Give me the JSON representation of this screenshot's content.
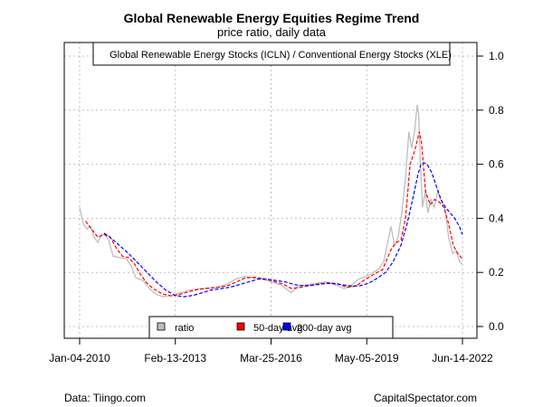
{
  "chart_data": {
    "type": "line",
    "title": "Global Renewable Energy Equities Regime Trend",
    "subtitle": "price ratio, daily data",
    "annotation": "Global Renewable Energy Stocks (ICLN) / Conventional Energy Stocks (XLE)",
    "xlabel": "",
    "ylabel": "",
    "xlim": [
      2009.55,
      2022.9
    ],
    "ylim": [
      -0.04,
      1.04
    ],
    "x_tick_values": [
      2010.01,
      2013.12,
      2016.23,
      2019.34,
      2022.45
    ],
    "x_tick_labels": [
      "Jan-04-2010",
      "Feb-13-2013",
      "Mar-25-2016",
      "May-05-2019",
      "Jun-14-2022"
    ],
    "y_ticks": [
      0.0,
      0.2,
      0.4,
      0.6,
      0.8,
      1.0
    ],
    "y_tick_labels": [
      "0.0",
      "0.2",
      "0.4",
      "0.6",
      "0.8",
      "1.0"
    ],
    "y_axis_side": "right",
    "grid": true,
    "legend": {
      "placement": "bottom-center",
      "entries": [
        {
          "label": "ratio",
          "color": "#bebebe"
        },
        {
          "label": "50-day avg",
          "color": "#ff0000"
        },
        {
          "label": "200-day avg",
          "color": "#0000ff"
        }
      ]
    },
    "series": [
      {
        "name": "ratio",
        "color": "#bebebe",
        "style": "solid",
        "x": [
          2010.01,
          2010.13,
          2010.25,
          2010.36,
          2010.48,
          2010.6,
          2010.72,
          2010.83,
          2010.95,
          2011.1,
          2011.3,
          2011.54,
          2011.7,
          2011.84,
          2012.07,
          2012.28,
          2012.48,
          2012.72,
          2013.0,
          2013.3,
          2013.6,
          2013.9,
          2014.2,
          2014.5,
          2014.77,
          2015.07,
          2015.36,
          2015.66,
          2015.95,
          2016.24,
          2016.54,
          2016.77,
          2016.89,
          2017.13,
          2017.42,
          2017.72,
          2018.0,
          2018.3,
          2018.6,
          2018.83,
          2019.07,
          2019.3,
          2019.54,
          2019.71,
          2019.89,
          2020.0,
          2020.13,
          2020.24,
          2020.36,
          2020.48,
          2020.6,
          2020.71,
          2020.8,
          2020.89,
          2020.98,
          2021.03,
          2021.09,
          2021.15,
          2021.24,
          2021.33,
          2021.42,
          2021.53,
          2021.65,
          2021.77,
          2021.89,
          2022.0,
          2022.13,
          2022.25,
          2022.36,
          2022.45
        ],
        "values": [
          0.44,
          0.38,
          0.36,
          0.37,
          0.33,
          0.31,
          0.34,
          0.34,
          0.32,
          0.26,
          0.255,
          0.25,
          0.22,
          0.18,
          0.17,
          0.14,
          0.12,
          0.11,
          0.115,
          0.125,
          0.135,
          0.14,
          0.14,
          0.145,
          0.155,
          0.175,
          0.185,
          0.18,
          0.175,
          0.165,
          0.155,
          0.135,
          0.125,
          0.15,
          0.155,
          0.16,
          0.165,
          0.155,
          0.14,
          0.15,
          0.175,
          0.185,
          0.2,
          0.21,
          0.24,
          0.3,
          0.37,
          0.3,
          0.33,
          0.42,
          0.55,
          0.72,
          0.66,
          0.72,
          0.82,
          0.78,
          0.58,
          0.44,
          0.5,
          0.42,
          0.47,
          0.44,
          0.5,
          0.46,
          0.43,
          0.33,
          0.27,
          0.28,
          0.24,
          0.23
        ]
      },
      {
        "name": "50-day avg",
        "color": "#ff0000",
        "style": "dashed",
        "x": [
          2010.2,
          2010.4,
          2010.6,
          2010.8,
          2011.0,
          2011.2,
          2011.4,
          2011.6,
          2011.8,
          2012.0,
          2012.2,
          2012.4,
          2012.7,
          2013.0,
          2013.3,
          2013.6,
          2013.9,
          2014.2,
          2014.5,
          2014.8,
          2015.1,
          2015.4,
          2015.7,
          2016.0,
          2016.3,
          2016.6,
          2016.9,
          2017.2,
          2017.5,
          2017.8,
          2018.1,
          2018.4,
          2018.7,
          2019.0,
          2019.3,
          2019.6,
          2019.85,
          2020.0,
          2020.15,
          2020.3,
          2020.45,
          2020.6,
          2020.75,
          2020.9,
          2021.05,
          2021.12,
          2021.25,
          2021.4,
          2021.55,
          2021.7,
          2021.85,
          2022.0,
          2022.15,
          2022.3,
          2022.45
        ],
        "values": [
          0.39,
          0.36,
          0.33,
          0.34,
          0.33,
          0.29,
          0.26,
          0.255,
          0.23,
          0.19,
          0.16,
          0.14,
          0.12,
          0.113,
          0.12,
          0.13,
          0.138,
          0.142,
          0.145,
          0.15,
          0.165,
          0.18,
          0.182,
          0.177,
          0.168,
          0.158,
          0.14,
          0.145,
          0.152,
          0.158,
          0.162,
          0.158,
          0.145,
          0.15,
          0.175,
          0.195,
          0.21,
          0.25,
          0.29,
          0.31,
          0.32,
          0.4,
          0.6,
          0.65,
          0.72,
          0.68,
          0.5,
          0.45,
          0.47,
          0.46,
          0.44,
          0.38,
          0.3,
          0.27,
          0.25
        ]
      },
      {
        "name": "200-day avg",
        "color": "#0000ff",
        "style": "dashed",
        "x": [
          2010.8,
          2011.0,
          2011.3,
          2011.6,
          2011.9,
          2012.2,
          2012.5,
          2012.8,
          2013.1,
          2013.4,
          2013.7,
          2014.0,
          2014.3,
          2014.6,
          2014.9,
          2015.2,
          2015.5,
          2015.8,
          2016.1,
          2016.4,
          2016.7,
          2017.0,
          2017.3,
          2017.6,
          2017.9,
          2018.2,
          2018.5,
          2018.8,
          2019.1,
          2019.4,
          2019.7,
          2019.95,
          2020.2,
          2020.45,
          2020.65,
          2020.85,
          2021.0,
          2021.1,
          2021.2,
          2021.3,
          2021.45,
          2021.6,
          2021.75,
          2021.9,
          2022.05,
          2022.2,
          2022.35,
          2022.45
        ],
        "values": [
          0.345,
          0.33,
          0.3,
          0.27,
          0.235,
          0.2,
          0.165,
          0.135,
          0.115,
          0.11,
          0.115,
          0.125,
          0.135,
          0.14,
          0.145,
          0.155,
          0.165,
          0.175,
          0.175,
          0.17,
          0.165,
          0.155,
          0.15,
          0.153,
          0.158,
          0.16,
          0.155,
          0.15,
          0.15,
          0.16,
          0.18,
          0.2,
          0.24,
          0.3,
          0.38,
          0.48,
          0.56,
          0.6,
          0.605,
          0.6,
          0.57,
          0.52,
          0.47,
          0.44,
          0.42,
          0.4,
          0.37,
          0.34
        ]
      }
    ]
  },
  "footer": {
    "left": "Data: Tiingo.com",
    "right": "CapitalSpectator.com"
  }
}
